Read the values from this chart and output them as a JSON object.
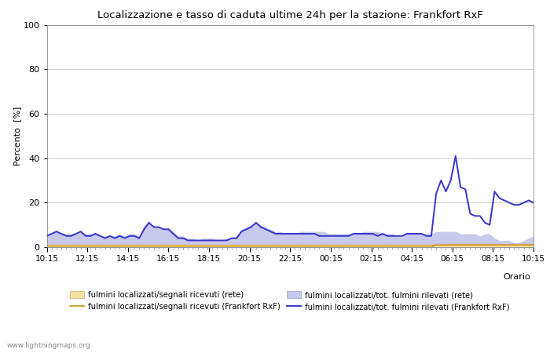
{
  "title": "Localizzazione e tasso di caduta ultime 24h per la stazione: Frankfort RxF",
  "ylabel": "Percento  [%]",
  "xlabel": "Orario",
  "ylim": [
    0,
    100
  ],
  "yticks": [
    0,
    20,
    40,
    60,
    80,
    100
  ],
  "x_labels": [
    "10:15",
    "12:15",
    "14:15",
    "16:15",
    "18:15",
    "20:15",
    "22:15",
    "00:15",
    "02:15",
    "04:15",
    "06:15",
    "08:15",
    "10:15"
  ],
  "watermark": "www.lightningmaps.org",
  "color_fill_rete": "#f5e0a0",
  "color_fill_rxf": "#c8caed",
  "color_line_segnali_rete": "#d4a030",
  "color_line_segnali_rxf": "#c8900a",
  "color_line_tot_rxf": "#3535cc",
  "legend_labels": [
    "fulmini localizzati/segnali ricevuti (rete)",
    "fulmini localizzati/segnali ricevuti (Frankfort RxF)",
    "fulmini localizzati/tot. fulmini rilevati (rete)",
    "fulmini localizzati/tot. fulmini rilevati (Frankfort RxF)"
  ],
  "rete_fill_y": [
    1,
    1,
    1,
    1,
    1,
    1,
    1,
    1,
    1,
    1,
    1,
    1,
    1,
    1,
    1,
    1,
    1,
    1,
    1,
    1,
    1,
    1,
    1,
    1,
    1,
    1,
    1,
    1,
    1,
    1,
    1,
    1,
    1,
    1,
    1,
    1,
    1,
    1,
    1,
    1,
    1,
    1,
    1,
    1,
    1,
    1,
    1,
    1,
    1,
    1,
    1,
    1,
    1,
    1,
    1,
    1,
    1,
    1,
    1,
    1,
    1,
    1,
    1,
    1,
    1,
    1,
    1,
    1,
    1,
    1,
    1,
    1,
    1,
    1,
    1,
    1,
    1,
    1,
    1,
    1,
    1,
    1,
    1,
    1,
    1,
    1,
    1,
    1,
    1,
    1,
    1,
    1,
    1,
    1,
    1,
    1,
    1,
    1,
    1,
    1,
    1
  ],
  "rxf_fill_y": [
    5,
    6,
    7,
    6,
    6,
    6,
    6,
    7,
    6,
    6,
    6,
    5,
    5,
    5,
    5,
    6,
    5,
    6,
    6,
    5,
    10,
    11,
    9,
    9,
    8,
    9,
    7,
    5,
    5,
    4,
    4,
    3,
    4,
    4,
    4,
    3,
    3,
    4,
    4,
    5,
    8,
    9,
    10,
    11,
    10,
    9,
    8,
    7,
    7,
    6,
    6,
    6,
    7,
    7,
    7,
    7,
    7,
    7,
    6,
    6,
    6,
    6,
    6,
    6,
    6,
    7,
    7,
    7,
    7,
    6,
    6,
    6,
    5,
    5,
    6,
    6,
    6,
    6,
    6,
    6,
    7,
    7,
    7,
    7,
    7,
    6,
    6,
    6,
    6,
    5,
    6,
    6,
    4,
    3,
    3,
    3,
    2,
    2,
    3,
    4,
    5
  ],
  "segnali_rete_y": [
    1,
    1,
    1,
    1,
    1,
    1,
    1,
    1,
    1,
    1,
    1,
    1,
    1,
    1,
    1,
    1,
    1,
    1,
    1,
    1,
    1,
    1,
    1,
    1,
    1,
    1,
    1,
    1,
    1,
    1,
    1,
    1,
    1,
    1,
    1,
    1,
    1,
    1,
    1,
    1,
    1,
    1,
    1,
    1,
    1,
    1,
    1,
    1,
    1,
    1,
    1,
    1,
    1,
    1,
    1,
    1,
    1,
    1,
    1,
    1,
    1,
    1,
    1,
    1,
    1,
    1,
    1,
    1,
    1,
    1,
    1,
    1,
    1,
    1,
    1,
    1,
    1,
    1,
    1,
    1,
    1,
    1,
    1,
    1,
    1,
    1,
    1,
    1,
    1,
    1,
    1,
    1,
    1,
    1,
    1,
    1,
    1,
    1,
    1,
    1,
    1
  ],
  "segnali_rxf_y": [
    0,
    0,
    0,
    0,
    0,
    0,
    0,
    0,
    0,
    0,
    0,
    0,
    0,
    0,
    0,
    0,
    0,
    0,
    0,
    0,
    0,
    0,
    0,
    0,
    0,
    0,
    0,
    0,
    0,
    0,
    0,
    0,
    0,
    0,
    0,
    0,
    0,
    0,
    0,
    0,
    0,
    0,
    0,
    0,
    0,
    0,
    0,
    0,
    0,
    0,
    0,
    0,
    0,
    0,
    0,
    0,
    0,
    0,
    0,
    0,
    0,
    0,
    0,
    0,
    0,
    0,
    0,
    0,
    0,
    0,
    0,
    0,
    0,
    0,
    0,
    0,
    0,
    0,
    0,
    0,
    1,
    1,
    1,
    1,
    1,
    1,
    1,
    1,
    1,
    1,
    1,
    1,
    1,
    1,
    1,
    1,
    1,
    1,
    1,
    1,
    1
  ],
  "tot_rxf_y": [
    5,
    6,
    7,
    6,
    5,
    5,
    6,
    7,
    5,
    5,
    6,
    5,
    4,
    5,
    4,
    5,
    4,
    5,
    5,
    4,
    8,
    11,
    9,
    9,
    8,
    8,
    6,
    4,
    4,
    3,
    3,
    3,
    3,
    3,
    3,
    3,
    3,
    3,
    4,
    4,
    7,
    8,
    9,
    11,
    9,
    8,
    7,
    6,
    6,
    6,
    6,
    6,
    6,
    6,
    6,
    6,
    5,
    5,
    5,
    5,
    5,
    5,
    5,
    6,
    6,
    6,
    6,
    6,
    5,
    6,
    5,
    5,
    5,
    5,
    6,
    6,
    6,
    6,
    5,
    5,
    24,
    30,
    25,
    30,
    41,
    27,
    26,
    15,
    14,
    14,
    11,
    10,
    25,
    22,
    21,
    20,
    19,
    19,
    20,
    21,
    20
  ],
  "n_points": 101
}
